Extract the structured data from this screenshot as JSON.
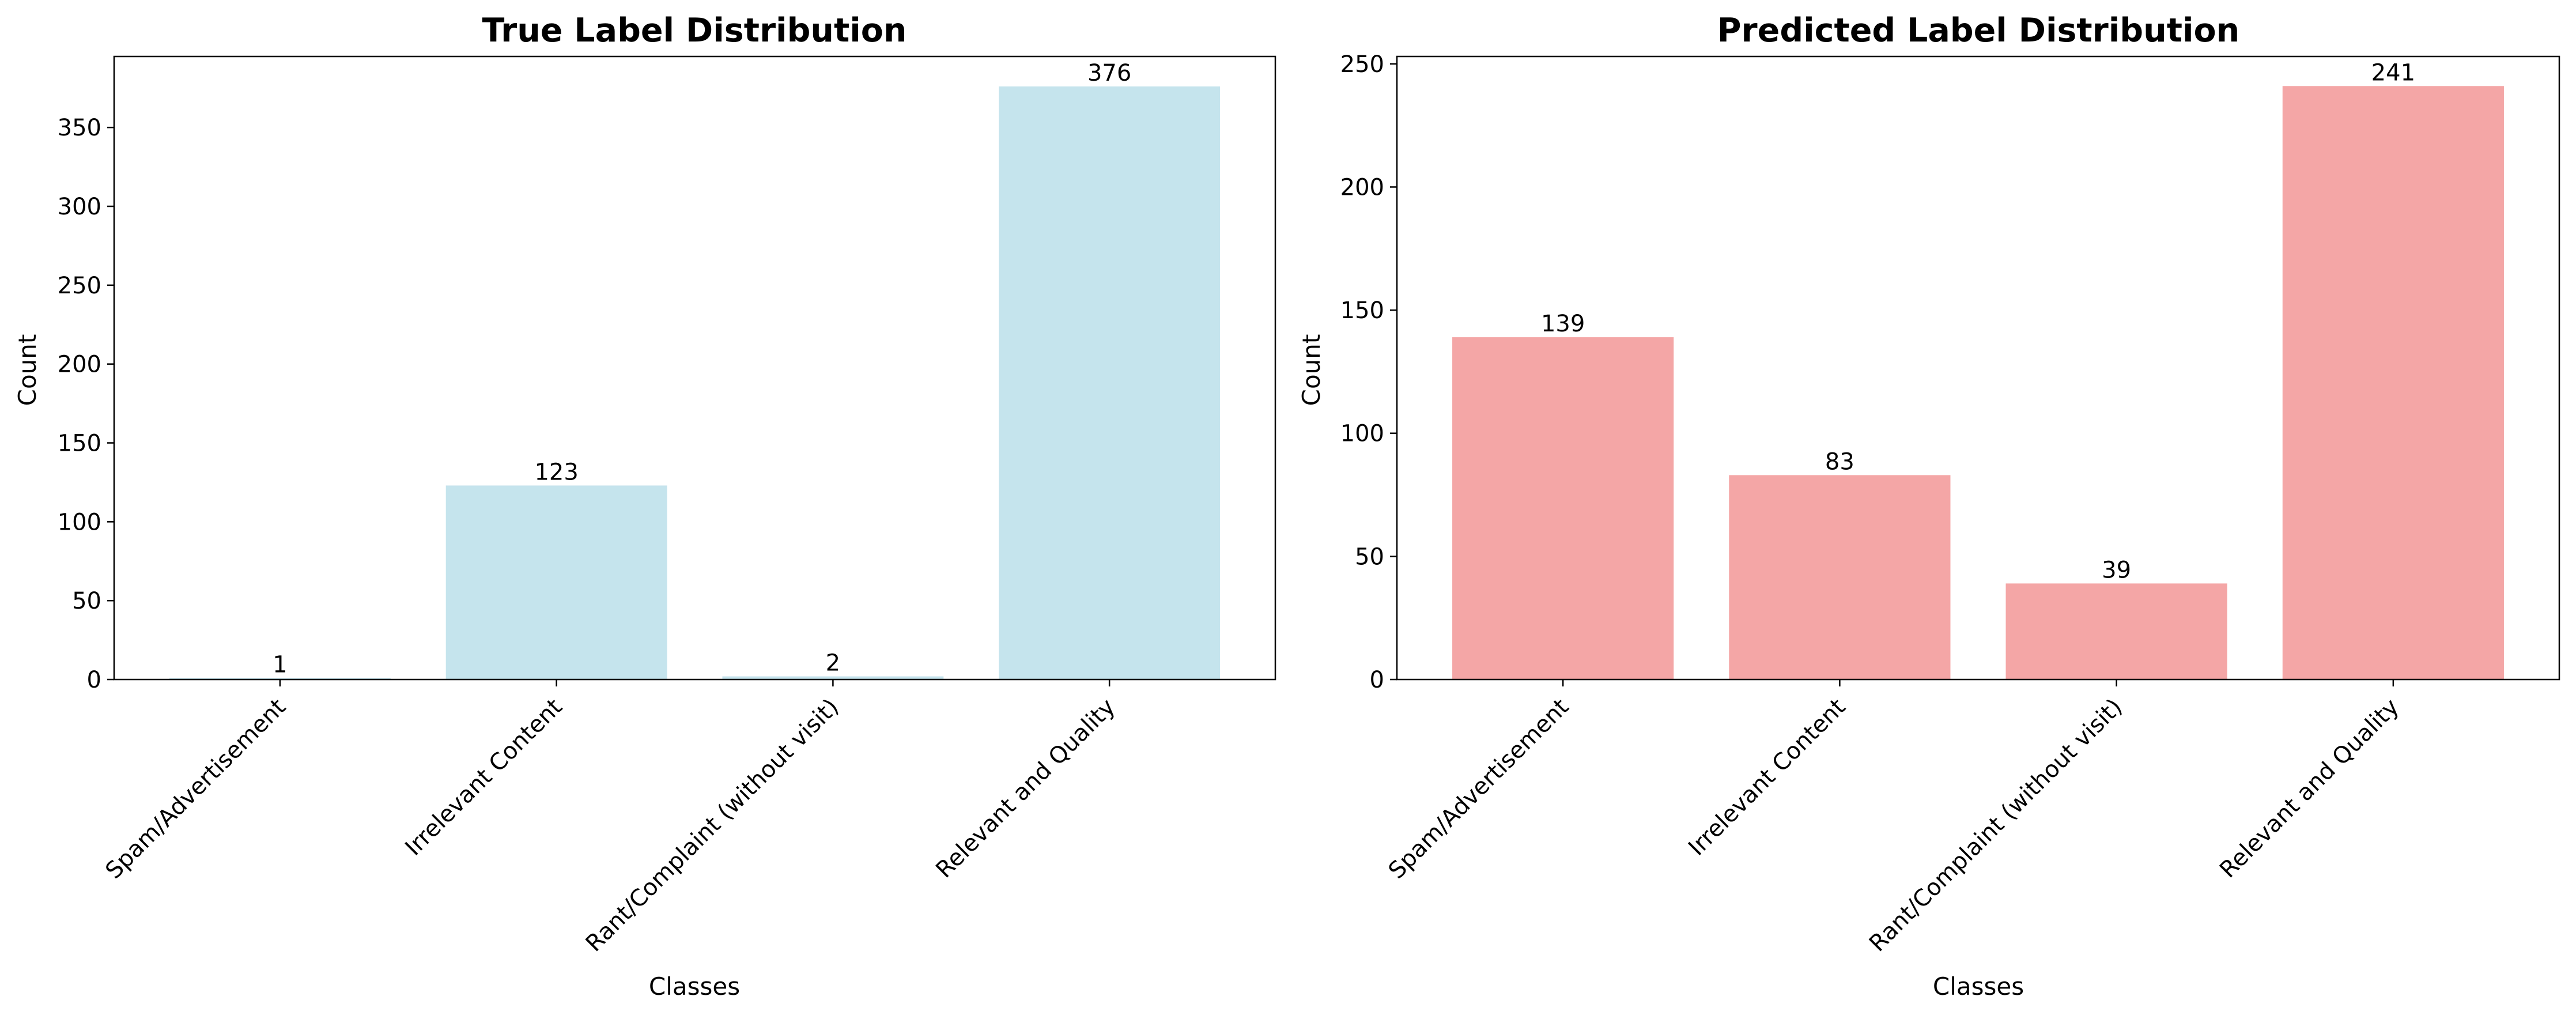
{
  "chart_data": [
    {
      "type": "bar",
      "title": "True Label Distribution",
      "xlabel": "Classes",
      "ylabel": "Count",
      "categories": [
        "Spam/Advertisement",
        "Irrelevant Content",
        "Rant/Complaint (without visit)",
        "Relevant and Quality"
      ],
      "values": [
        1,
        123,
        2,
        376
      ],
      "ylim": [
        0,
        395
      ],
      "yticks": [
        0,
        50,
        100,
        150,
        200,
        250,
        300,
        350
      ],
      "bar_color": "#add8e6",
      "grid": false
    },
    {
      "type": "bar",
      "title": "Predicted Label Distribution",
      "xlabel": "Classes",
      "ylabel": "Count",
      "categories": [
        "Spam/Advertisement",
        "Irrelevant Content",
        "Rant/Complaint (without visit)",
        "Relevant and Quality"
      ],
      "values": [
        139,
        83,
        39,
        241
      ],
      "ylim": [
        0,
        253
      ],
      "yticks": [
        0,
        50,
        100,
        150,
        200,
        250
      ],
      "bar_color": "#f08080",
      "grid": false
    }
  ]
}
